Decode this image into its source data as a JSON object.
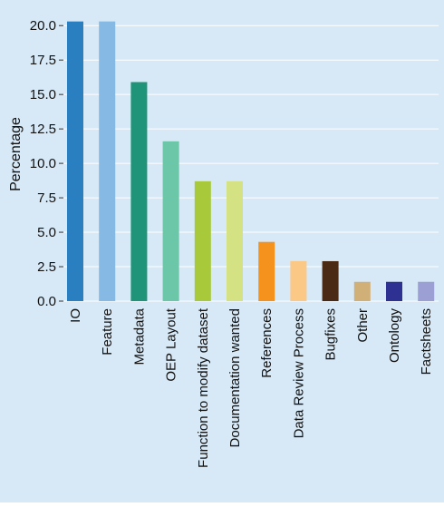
{
  "chart_data": {
    "type": "bar",
    "title": "",
    "xlabel": "",
    "ylabel": "Percentage",
    "ylim": [
      0,
      21.2
    ],
    "yticks": [
      "0.0",
      "2.5",
      "5.0",
      "7.5",
      "10.0",
      "12.5",
      "15.0",
      "17.5",
      "20.0"
    ],
    "grid": true,
    "categories": [
      "IO",
      "Feature",
      "Metadata",
      "OEP Layout",
      "Function to modify dataset",
      "Documentation wanted",
      "References",
      "Data Review Process",
      "Bugfixes",
      "Other",
      "Ontology",
      "Factsheets"
    ],
    "values": [
      20.3,
      20.3,
      15.9,
      11.6,
      8.7,
      8.7,
      4.3,
      2.9,
      2.9,
      1.4,
      1.4,
      1.4
    ],
    "colors": [
      "#2a7fc0",
      "#86b9e4",
      "#1f9478",
      "#6cc6a8",
      "#a7c93a",
      "#d5e284",
      "#f5921e",
      "#fcc886",
      "#4a2915",
      "#d1b077",
      "#2f3192",
      "#9b9fd3"
    ]
  },
  "style": {
    "background": "#d7e8f6",
    "grid_color": "#ffffff"
  }
}
